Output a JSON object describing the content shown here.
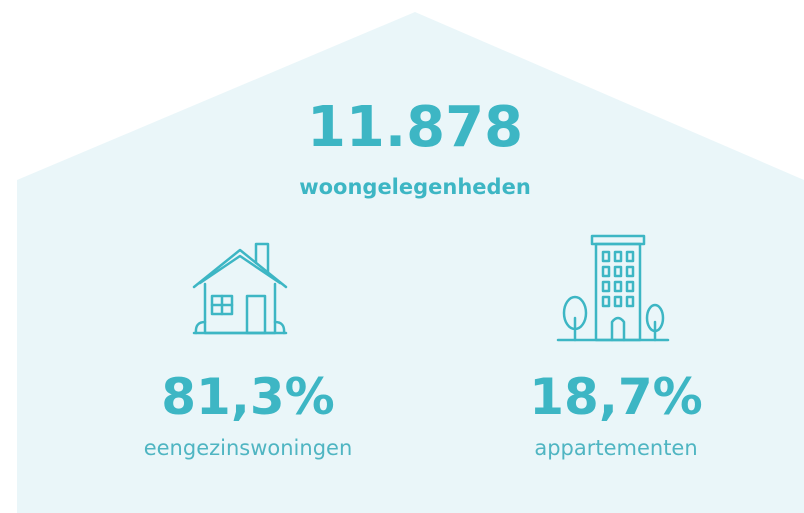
{
  "headline": {
    "value": "11.878",
    "label": "woongelegenheden"
  },
  "items": [
    {
      "value": "81,3%",
      "label": "eengezinswoningen"
    },
    {
      "value": "18,7%",
      "label": "appartementen"
    }
  ]
}
